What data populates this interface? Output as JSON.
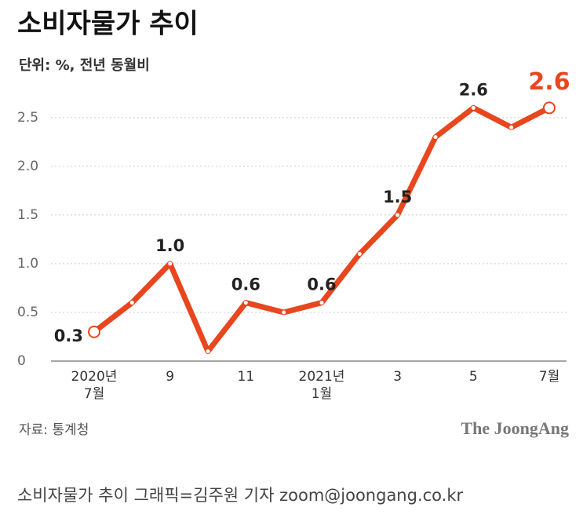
{
  "chart_data": {
    "type": "line",
    "title": "소비자물가 추이",
    "subtitle": "단위: %, 전년 동월비",
    "source": "자료: 통계청",
    "brand": "The JoongAng",
    "caption": "소비자물가 추이 그래픽=김주원 기자 zoom@joongang.co.kr",
    "categories": [
      "2020년\n7월",
      null,
      "9",
      null,
      "11",
      null,
      "2021년\n1월",
      null,
      "3",
      null,
      "5",
      null,
      "7월"
    ],
    "series": [
      {
        "name": "소비자물가",
        "color": "#e8461e",
        "values": [
          0.3,
          0.6,
          1.0,
          0.1,
          0.6,
          0.5,
          0.6,
          1.1,
          1.5,
          2.3,
          2.6,
          2.4,
          2.6
        ],
        "value_labels": [
          "0.3",
          null,
          "1.0",
          null,
          "0.6",
          null,
          "0.6",
          null,
          "1.5",
          null,
          "2.6",
          null,
          "2.6"
        ]
      }
    ],
    "ylim": [
      0,
      2.7
    ],
    "yticks": [
      0,
      0.5,
      {
        "value": 1,
        "label": "1.0"
      },
      1.5,
      {
        "value": 2,
        "label": "2.0"
      },
      2.5
    ],
    "grid": true
  }
}
